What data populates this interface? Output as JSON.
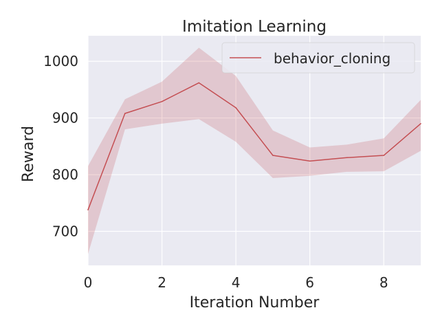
{
  "chart_data": {
    "type": "line",
    "title": "Imitation Learning",
    "xlabel": "Iteration Number",
    "ylabel": "Reward",
    "xlim": [
      0,
      9
    ],
    "ylim": [
      640,
      1045
    ],
    "xticks": [
      0,
      2,
      4,
      6,
      8
    ],
    "yticks": [
      700,
      800,
      900,
      1000
    ],
    "xtick_labels": [
      "0",
      "2",
      "4",
      "6",
      "8"
    ],
    "ytick_labels": [
      "700",
      "800",
      "900",
      "1000"
    ],
    "grid": true,
    "legend": "top-right",
    "series": [
      {
        "name": "behavior_cloning",
        "color": "#c44e52",
        "x": [
          0,
          1,
          2,
          3,
          4,
          5,
          6,
          7,
          8,
          9
        ],
        "y": [
          738,
          908,
          929,
          962,
          918,
          834,
          824,
          830,
          834,
          890
        ],
        "lower": [
          660,
          880,
          890,
          898,
          858,
          794,
          798,
          805,
          806,
          842
        ],
        "upper": [
          815,
          933,
          964,
          1024,
          974,
          878,
          848,
          853,
          864,
          932
        ]
      }
    ]
  }
}
